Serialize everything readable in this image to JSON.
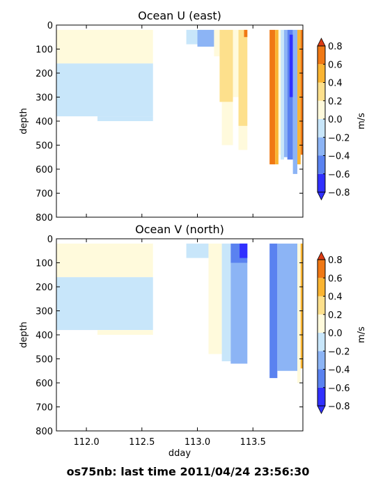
{
  "figure": {
    "suptitle": "os75nb: last time 2011/04/24 23:56:30"
  },
  "chart_data": [
    {
      "type": "heatmap",
      "title": "Ocean U (east)",
      "xlabel": "",
      "ylabel": "depth",
      "xlim": [
        111.73,
        113.95
      ],
      "ylim": [
        800,
        0
      ],
      "xticks": [
        112.0,
        112.5,
        113.0,
        113.5
      ],
      "xtick_labels": [],
      "yticks": [
        0,
        100,
        200,
        300,
        400,
        500,
        600,
        700,
        800
      ],
      "ytick_labels": [
        "0",
        "100",
        "200",
        "300",
        "400",
        "500",
        "600",
        "700",
        "800"
      ],
      "colorbar": {
        "label": "m/s",
        "levels": [
          -0.8,
          -0.6,
          -0.4,
          -0.2,
          0.0,
          0.2,
          0.4,
          0.6,
          0.8
        ],
        "tick_labels": [
          "−0.8",
          "−0.6",
          "−0.4",
          "−0.2",
          "0.0",
          "0.2",
          "0.4",
          "0.6",
          "0.8"
        ],
        "colors": [
          "#3030ff",
          "#5a82f0",
          "#8cb4f5",
          "#c8e6fa",
          "#fffadc",
          "#fde08c",
          "#fab432",
          "#f07814",
          "#dc3c14"
        ],
        "extend": "both"
      },
      "cells": [
        {
          "x": [
            111.73,
            112.6
          ],
          "depth": [
            20,
            160
          ],
          "value": 0.03
        },
        {
          "x": [
            111.73,
            112.6
          ],
          "depth": [
            160,
            380
          ],
          "value": -0.04
        },
        {
          "x": [
            112.1,
            112.6
          ],
          "depth": [
            380,
            400
          ],
          "value": -0.04
        },
        {
          "x": [
            112.9,
            113.0
          ],
          "depth": [
            20,
            80
          ],
          "value": -0.1
        },
        {
          "x": [
            113.0,
            113.15
          ],
          "depth": [
            20,
            90
          ],
          "value": -0.22
        },
        {
          "x": [
            113.15,
            113.2
          ],
          "depth": [
            20,
            130
          ],
          "value": 0.08
        },
        {
          "x": [
            113.2,
            113.32
          ],
          "depth": [
            20,
            320
          ],
          "value": 0.32
        },
        {
          "x": [
            113.22,
            113.32
          ],
          "depth": [
            320,
            500
          ],
          "value": 0.1
        },
        {
          "x": [
            113.32,
            113.37
          ],
          "depth": [
            20,
            300
          ],
          "value": 0.18
        },
        {
          "x": [
            113.37,
            113.45
          ],
          "depth": [
            20,
            420
          ],
          "value": 0.35
        },
        {
          "x": [
            113.37,
            113.45
          ],
          "depth": [
            420,
            520
          ],
          "value": 0.1
        },
        {
          "x": [
            113.42,
            113.45
          ],
          "depth": [
            20,
            50
          ],
          "value": 0.65
        },
        {
          "x": [
            113.65,
            113.7
          ],
          "depth": [
            20,
            580
          ],
          "value": 0.72
        },
        {
          "x": [
            113.7,
            113.73
          ],
          "depth": [
            20,
            580
          ],
          "value": 0.48
        },
        {
          "x": [
            113.73,
            113.75
          ],
          "depth": [
            20,
            540
          ],
          "value": 0.12
        },
        {
          "x": [
            113.75,
            113.78
          ],
          "depth": [
            20,
            560
          ],
          "value": -0.12
        },
        {
          "x": [
            113.78,
            113.81
          ],
          "depth": [
            20,
            550
          ],
          "value": -0.32
        },
        {
          "x": [
            113.81,
            113.86
          ],
          "depth": [
            20,
            560
          ],
          "value": -0.6
        },
        {
          "x": [
            113.83,
            113.86
          ],
          "depth": [
            40,
            300
          ],
          "value": -0.85
        },
        {
          "x": [
            113.86,
            113.9
          ],
          "depth": [
            20,
            620
          ],
          "value": -0.3
        },
        {
          "x": [
            113.9,
            113.93
          ],
          "depth": [
            20,
            580
          ],
          "value": 0.4
        },
        {
          "x": [
            113.93,
            113.95
          ],
          "depth": [
            20,
            540
          ],
          "value": 0.65
        }
      ]
    },
    {
      "type": "heatmap",
      "title": "Ocean V (north)",
      "xlabel": "dday",
      "ylabel": "depth",
      "xlim": [
        111.73,
        113.95
      ],
      "ylim": [
        800,
        0
      ],
      "xticks": [
        112.0,
        112.5,
        113.0,
        113.5
      ],
      "xtick_labels": [
        "112.0",
        "112.5",
        "113.0",
        "113.5"
      ],
      "yticks": [
        0,
        100,
        200,
        300,
        400,
        500,
        600,
        700,
        800
      ],
      "ytick_labels": [
        "0",
        "100",
        "200",
        "300",
        "400",
        "500",
        "600",
        "700",
        "800"
      ],
      "colorbar": {
        "label": "m/s",
        "levels": [
          -0.8,
          -0.6,
          -0.4,
          -0.2,
          0.0,
          0.2,
          0.4,
          0.6,
          0.8
        ],
        "tick_labels": [
          "−0.8",
          "−0.6",
          "−0.4",
          "−0.2",
          "0.0",
          "0.2",
          "0.4",
          "0.6",
          "0.8"
        ],
        "colors": [
          "#3030ff",
          "#5a82f0",
          "#8cb4f5",
          "#c8e6fa",
          "#fffadc",
          "#fde08c",
          "#fab432",
          "#f07814",
          "#dc3c14"
        ],
        "extend": "both"
      },
      "cells": [
        {
          "x": [
            111.73,
            112.6
          ],
          "depth": [
            20,
            160
          ],
          "value": 0.03
        },
        {
          "x": [
            111.73,
            112.6
          ],
          "depth": [
            160,
            380
          ],
          "value": -0.04
        },
        {
          "x": [
            112.1,
            112.6
          ],
          "depth": [
            380,
            400
          ],
          "value": 0.03
        },
        {
          "x": [
            112.9,
            113.1
          ],
          "depth": [
            20,
            80
          ],
          "value": -0.08
        },
        {
          "x": [
            113.1,
            113.22
          ],
          "depth": [
            20,
            480
          ],
          "value": 0.05
        },
        {
          "x": [
            113.22,
            113.3
          ],
          "depth": [
            20,
            510
          ],
          "value": -0.1
        },
        {
          "x": [
            113.3,
            113.45
          ],
          "depth": [
            20,
            100
          ],
          "value": -0.45
        },
        {
          "x": [
            113.3,
            113.45
          ],
          "depth": [
            100,
            520
          ],
          "value": -0.25
        },
        {
          "x": [
            113.38,
            113.45
          ],
          "depth": [
            20,
            80
          ],
          "value": -0.65
        },
        {
          "x": [
            113.65,
            113.72
          ],
          "depth": [
            20,
            580
          ],
          "value": -0.45
        },
        {
          "x": [
            113.72,
            113.9
          ],
          "depth": [
            20,
            550
          ],
          "value": -0.3
        },
        {
          "x": [
            113.9,
            113.93
          ],
          "depth": [
            20,
            600
          ],
          "value": 0.15
        },
        {
          "x": [
            113.93,
            113.95
          ],
          "depth": [
            20,
            540
          ],
          "value": 0.45
        }
      ]
    }
  ]
}
